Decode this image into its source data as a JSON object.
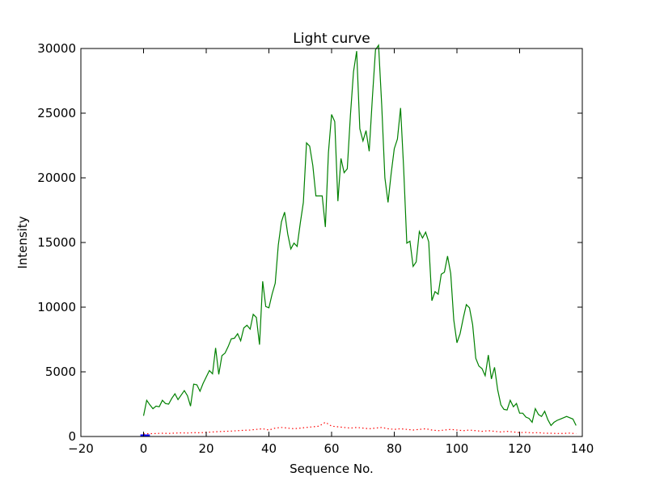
{
  "chart_data": {
    "type": "line",
    "title": "Light curve",
    "xlabel": "Sequence No.",
    "ylabel": "Intensity",
    "xlim": [
      -20,
      140
    ],
    "ylim": [
      0,
      30000
    ],
    "x_ticks": [
      -20,
      0,
      20,
      40,
      60,
      80,
      100,
      120,
      140
    ],
    "y_ticks": [
      0,
      5000,
      10000,
      15000,
      20000,
      25000,
      30000
    ],
    "grid": false,
    "legend": "none",
    "series": [
      {
        "color": "#008000",
        "style": "solid",
        "x": [
          0,
          1,
          2,
          3,
          4,
          5,
          6,
          7,
          8,
          9,
          10,
          11,
          12,
          13,
          14,
          15,
          16,
          17,
          18,
          19,
          20,
          21,
          22,
          23,
          24,
          25,
          26,
          27,
          28,
          29,
          30,
          31,
          32,
          33,
          34,
          35,
          36,
          37,
          38,
          39,
          40,
          41,
          42,
          43,
          44,
          45,
          46,
          47,
          48,
          49,
          50,
          51,
          52,
          53,
          54,
          55,
          56,
          57,
          58,
          59,
          60,
          61,
          62,
          63,
          64,
          65,
          66,
          67,
          68,
          69,
          70,
          71,
          72,
          73,
          74,
          75,
          76,
          77,
          78,
          79,
          80,
          81,
          82,
          83,
          84,
          85,
          86,
          87,
          88,
          89,
          90,
          91,
          92,
          93,
          94,
          95,
          96,
          97,
          98,
          99,
          100,
          101,
          102,
          103,
          104,
          105,
          106,
          107,
          108,
          109,
          110,
          111,
          112,
          113,
          114,
          115,
          116,
          117,
          118,
          119,
          120,
          121,
          122,
          123,
          124,
          125,
          126,
          127,
          128,
          129,
          130,
          131,
          132,
          133,
          134,
          135,
          136,
          137,
          138
        ],
        "y": [
          1600,
          2800,
          2450,
          2150,
          2350,
          2300,
          2800,
          2550,
          2500,
          2950,
          3300,
          2850,
          3200,
          3550,
          3150,
          2350,
          4050,
          4000,
          3500,
          4100,
          4600,
          5100,
          4850,
          6850,
          4800,
          6250,
          6450,
          6950,
          7550,
          7600,
          7950,
          7400,
          8400,
          8600,
          8300,
          9450,
          9200,
          7100,
          12000,
          10050,
          9950,
          11000,
          11850,
          14800,
          16600,
          17350,
          15650,
          14500,
          14950,
          14700,
          16500,
          18100,
          22700,
          22450,
          20950,
          18600,
          18600,
          18600,
          16200,
          21950,
          24900,
          24350,
          18200,
          21500,
          20400,
          20700,
          24850,
          28200,
          29800,
          23800,
          22850,
          23650,
          22050,
          26150,
          29900,
          30250,
          25600,
          20000,
          18100,
          20300,
          22250,
          23000,
          25400,
          20750,
          14950,
          15100,
          13150,
          13500,
          15850,
          15350,
          15800,
          15050,
          10500,
          11200,
          11000,
          12550,
          12700,
          13950,
          12600,
          9000,
          7250,
          7950,
          9150,
          10200,
          9950,
          8650,
          6050,
          5450,
          5250,
          4700,
          6300,
          4450,
          5350,
          3600,
          2450,
          2100,
          2050,
          2800,
          2300,
          2550,
          1800,
          1800,
          1500,
          1400,
          1100,
          2150,
          1700,
          1550,
          1950,
          1300,
          850,
          1100,
          1250,
          1350,
          1450,
          1550,
          1450,
          1350,
          850
        ]
      },
      {
        "color": "#ff0000",
        "style": "dotted",
        "x": [
          0,
          2,
          4,
          6,
          8,
          10,
          12,
          14,
          16,
          18,
          20,
          22,
          24,
          26,
          28,
          30,
          32,
          34,
          36,
          38,
          40,
          42,
          44,
          46,
          48,
          50,
          52,
          54,
          56,
          58,
          60,
          62,
          64,
          66,
          68,
          70,
          72,
          74,
          76,
          78,
          80,
          82,
          84,
          86,
          88,
          90,
          92,
          94,
          96,
          98,
          100,
          102,
          104,
          106,
          108,
          110,
          112,
          114,
          116,
          118,
          120,
          122,
          124,
          126,
          128,
          130,
          132,
          134,
          136,
          138
        ],
        "y": [
          200,
          220,
          230,
          250,
          240,
          260,
          280,
          270,
          300,
          290,
          320,
          350,
          380,
          400,
          420,
          450,
          480,
          500,
          550,
          600,
          500,
          650,
          700,
          650,
          600,
          650,
          700,
          750,
          800,
          1100,
          800,
          750,
          700,
          650,
          700,
          650,
          600,
          650,
          700,
          600,
          550,
          600,
          550,
          500,
          550,
          600,
          500,
          450,
          500,
          550,
          500,
          450,
          500,
          450,
          400,
          450,
          400,
          350,
          400,
          350,
          300,
          320,
          280,
          300,
          250,
          250,
          230,
          240,
          260,
          220
        ]
      },
      {
        "color": "#0000ff",
        "style": "solid",
        "x": [
          -1,
          0,
          1,
          2
        ],
        "y": [
          60,
          70,
          65,
          60
        ]
      }
    ]
  }
}
